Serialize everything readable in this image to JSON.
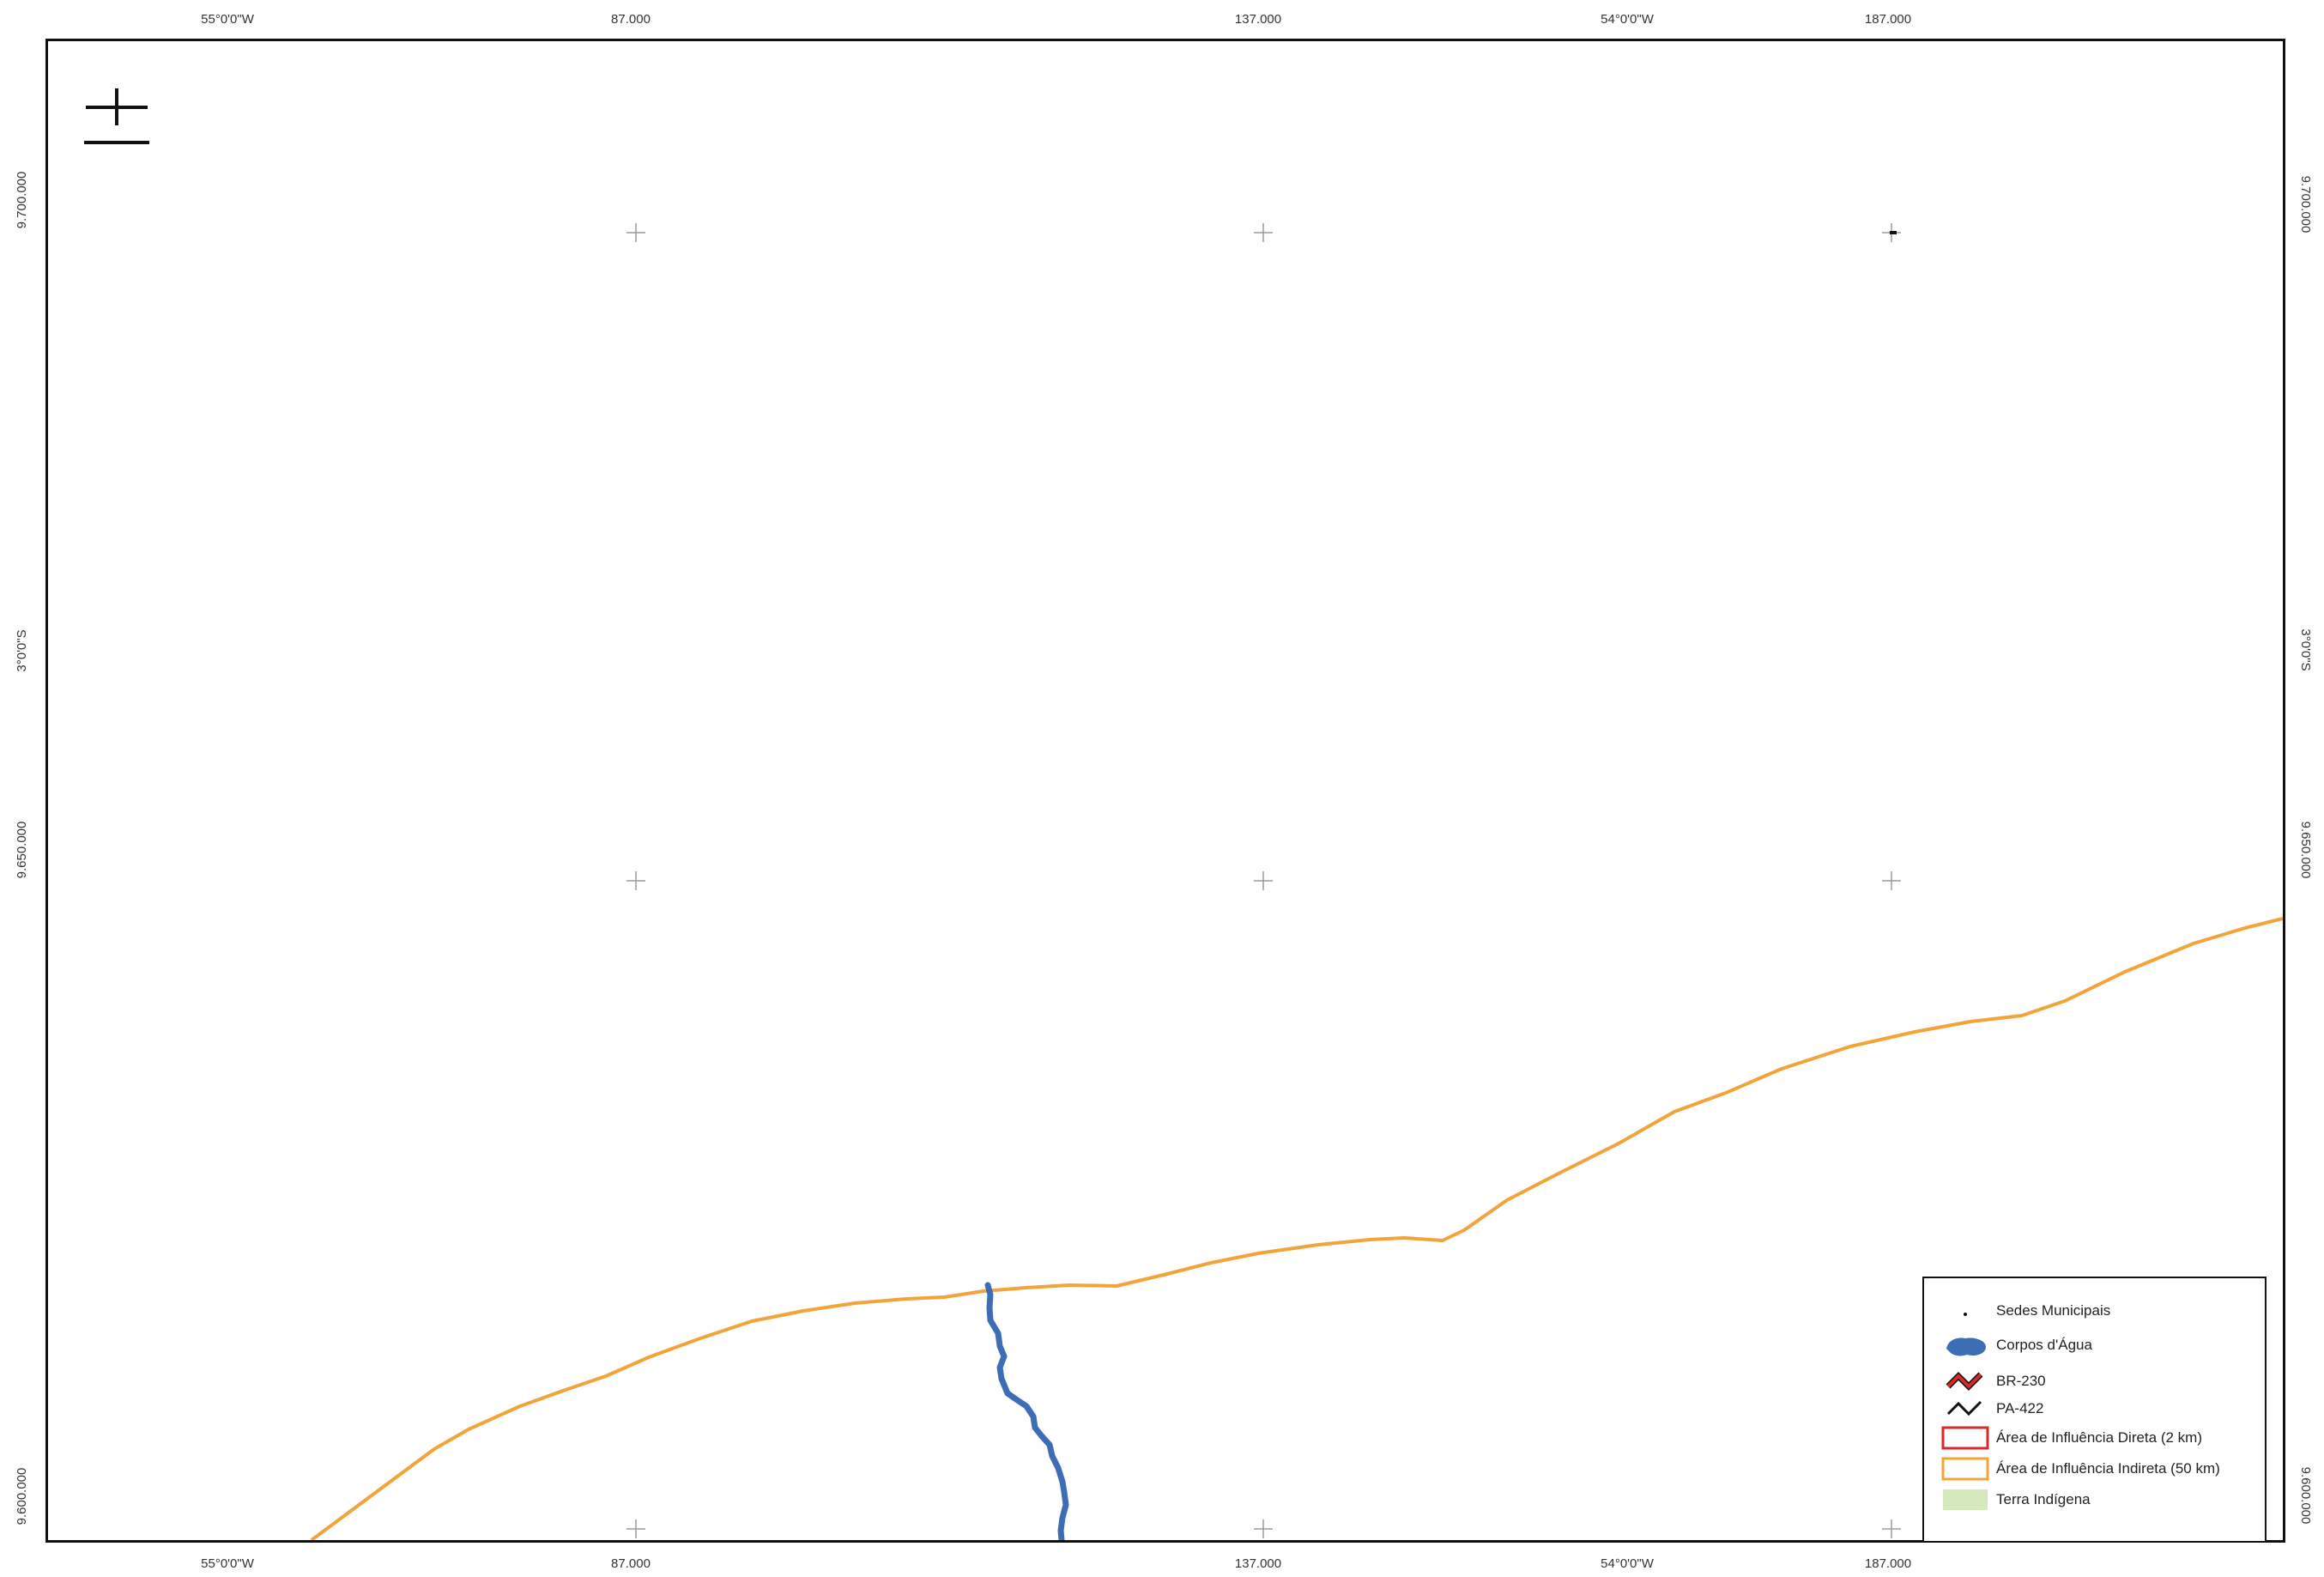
{
  "map": {
    "graticule_top": [
      {
        "id": "lon-55",
        "text": "55°0'0\"W"
      },
      {
        "id": "e-87",
        "text": "87.000"
      },
      {
        "id": "e-137",
        "text": "137.000"
      },
      {
        "id": "lon-54",
        "text": "54°0'0\"W"
      },
      {
        "id": "e-187",
        "text": "187.000"
      }
    ],
    "graticule_bottom": [
      {
        "id": "lon-55",
        "text": "55°0'0\"W"
      },
      {
        "id": "e-87",
        "text": "87.000"
      },
      {
        "id": "e-137",
        "text": "137.000"
      },
      {
        "id": "lon-54",
        "text": "54°0'0\"W"
      },
      {
        "id": "e-187",
        "text": "187.000"
      }
    ],
    "graticule_left": [
      {
        "id": "n-9700",
        "text": "9.700.000"
      },
      {
        "id": "lat-3",
        "text": "3°0'0\"S"
      },
      {
        "id": "n-9650",
        "text": "9.650.000"
      },
      {
        "id": "n-9600",
        "text": "9.600.000"
      }
    ],
    "graticule_right": [
      {
        "id": "n-9700",
        "text": "9.700.000"
      },
      {
        "id": "lat-3",
        "text": "3°0'0\"S"
      },
      {
        "id": "n-9650",
        "text": "9.650.000"
      },
      {
        "id": "n-9600",
        "text": "9.600.000"
      }
    ]
  },
  "legend": {
    "items": [
      {
        "id": "sedes",
        "label": "Sedes Municipais",
        "icon": "dot-icon"
      },
      {
        "id": "agua",
        "label": "Corpos d'Água",
        "icon": "water-body-icon"
      },
      {
        "id": "br230",
        "label": "BR-230",
        "icon": "road-red-icon"
      },
      {
        "id": "pa422",
        "label": "PA-422",
        "icon": "road-black-icon"
      },
      {
        "id": "aid",
        "label": "Área de Influência Direta (2 km)",
        "icon": "red-outline-icon"
      },
      {
        "id": "aii",
        "label": "Área de Influência Indireta (50 km)",
        "icon": "orange-outline-icon"
      },
      {
        "id": "ti",
        "label": "Terra Indígena",
        "icon": "green-fill-icon"
      }
    ]
  },
  "colors": {
    "indirect_influence": "#f2a43a",
    "river": "#3d6db5",
    "direct_influence": "#d42b2b",
    "indigenous_land": "#d5e8bd",
    "frame": "#111111"
  }
}
